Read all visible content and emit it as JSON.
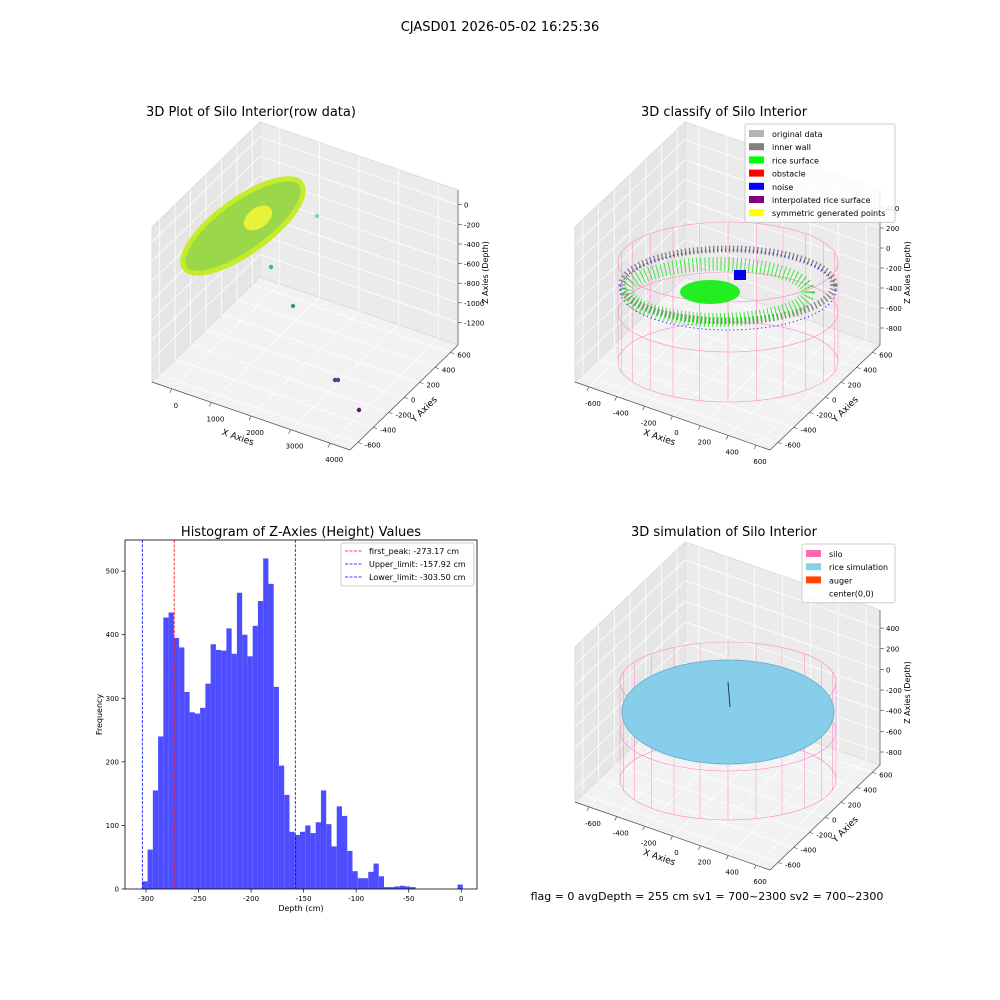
{
  "title": "CJASD01 2026-05-02 16:25:36",
  "footer": "flag = 0     avgDepth = 255 cm  sv1 = 700~2300  sv2 = 700~2300",
  "chart_data": [
    {
      "type": "scatter3d",
      "title": "3D Plot of Silo Interior(row data)",
      "xlabel": "X Axies",
      "ylabel": "Y Axies",
      "zlabel": "Z Axies (Depth)",
      "xlim": [
        -500,
        4500
      ],
      "xticks": [
        0,
        1000,
        2000,
        3000,
        4000
      ],
      "ylim": [
        -700,
        700
      ],
      "yticks": [
        -600,
        -400,
        -200,
        0,
        200,
        400,
        600
      ],
      "zlim": [
        -1430,
        150
      ],
      "zticks": [
        0,
        -200,
        -400,
        -600,
        -800,
        -1000,
        -1200
      ],
      "grid": true
    },
    {
      "type": "scatter3d",
      "title": "3D classify of Silo Interior",
      "xlabel": "X Axies",
      "ylabel": "Y Axies",
      "zlabel": "Z Axies (Depth)",
      "xlim": [
        -700,
        700
      ],
      "xticks": [
        -600,
        -400,
        -200,
        0,
        200,
        400,
        600
      ],
      "ylim": [
        -700,
        700
      ],
      "yticks": [
        -600,
        -400,
        -200,
        0,
        200,
        400,
        600
      ],
      "zlim": [
        -970,
        580
      ],
      "zticks": [
        400,
        200,
        0,
        -200,
        -400,
        -600,
        -800
      ],
      "grid": true,
      "legend": "upper right",
      "series": [
        {
          "name": "original data",
          "color": "#b3b3b3"
        },
        {
          "name": "inner wall",
          "color": "#808080"
        },
        {
          "name": "rice surface",
          "color": "#00ff00"
        },
        {
          "name": "obstacle",
          "color": "#ff0000"
        },
        {
          "name": "noise",
          "color": "#0000ff"
        },
        {
          "name": "interpolated rice surface",
          "color": "#800080"
        },
        {
          "name": "symmetric generated points",
          "color": "#ffff00"
        }
      ]
    },
    {
      "type": "histogram",
      "title": "Histogram of Z-Axies (Height) Values",
      "xlabel": "Depth (cm)",
      "ylabel": "Frequency",
      "color": "#4d4dff",
      "xlim": [
        -320,
        15
      ],
      "xticks": [
        -300,
        -250,
        -200,
        -150,
        -100,
        -50,
        0
      ],
      "ylim": [
        0,
        549
      ],
      "yticks": [
        0,
        100,
        200,
        300,
        400,
        500
      ],
      "bins": [
        -303.5,
        -298.5,
        -293.5,
        -288.5,
        -283.5,
        -278.5,
        -273.5,
        -268.5,
        -263.5,
        -258.5,
        -253.5,
        -248.5,
        -243.5,
        -238.5,
        -233.5,
        -228.5,
        -223.5,
        -218.5,
        -213.5,
        -208.5,
        -203.5,
        -198.5,
        -193.5,
        -188.5,
        -183.5,
        -178.5,
        -173.5,
        -168.5,
        -163.5,
        -158.5,
        -153.5,
        -148.5,
        -143.5,
        -138.5,
        -133.5,
        -128.5,
        -123.5,
        -118.5,
        -113.5,
        -108.5,
        -103.5,
        -98.5,
        -93.5,
        -88.5,
        -83.5,
        -78.5,
        -73.5,
        -68.5,
        -63.5,
        -58.5,
        -53.5,
        -48.5,
        -43.5,
        -38.5,
        -33.5,
        -28.5,
        -23.5,
        -18.5,
        -13.5,
        -8.5,
        -3.5,
        1.5
      ],
      "values": [
        12,
        62,
        155,
        240,
        427,
        435,
        395,
        380,
        310,
        278,
        276,
        285,
        323,
        385,
        376,
        375,
        410,
        370,
        466,
        400,
        366,
        414,
        453,
        520,
        480,
        318,
        194,
        148,
        90,
        85,
        90,
        100,
        88,
        105,
        155,
        102,
        67,
        130,
        115,
        60,
        28,
        17,
        17,
        27,
        40,
        20,
        3,
        3,
        4,
        5,
        4,
        3,
        0,
        0,
        0,
        0,
        0,
        0,
        0,
        0,
        7
      ],
      "legend": "upper right",
      "lines": [
        {
          "name": "first_peak: -273.17 cm",
          "value": -273.17,
          "color": "#ff0000"
        },
        {
          "name": "Upper_limit: -157.92 cm",
          "value": -157.92,
          "color": "#0000ff"
        },
        {
          "name": "Lower_limit: -303.50 cm",
          "value": -303.5,
          "color": "#0000ff"
        }
      ]
    },
    {
      "type": "surface3d",
      "title": "3D simulation of Silo Interior",
      "xlabel": "X Axies",
      "ylabel": "Y Axies",
      "zlabel": "Z Axies (Depth)",
      "xlim": [
        -700,
        700
      ],
      "xticks": [
        -600,
        -400,
        -200,
        0,
        200,
        400,
        600
      ],
      "ylim": [
        -700,
        700
      ],
      "yticks": [
        -600,
        -400,
        -200,
        0,
        200,
        400,
        600
      ],
      "zlim": [
        -926,
        575
      ],
      "zticks": [
        400,
        200,
        0,
        -200,
        -400,
        -600,
        -800
      ],
      "grid": true,
      "legend": "upper right",
      "series": [
        {
          "name": "silo",
          "color": "#ff69b4"
        },
        {
          "name": "rice simulation",
          "color": "#87ceeb"
        },
        {
          "name": "auger",
          "color": "#ff4500"
        },
        {
          "name": "center(0,0)",
          "color": "#ffffff"
        }
      ]
    }
  ]
}
